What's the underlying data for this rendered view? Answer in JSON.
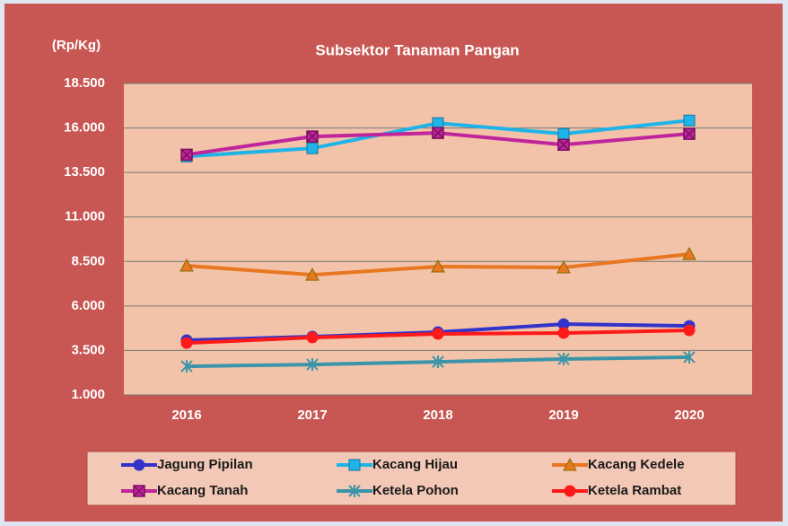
{
  "chart_data": {
    "type": "line",
    "title": "Subsektor Tanaman Pangan",
    "y_label": "(Rp/Kg)",
    "categories": [
      "2016",
      "2017",
      "2018",
      "2019",
      "2020"
    ],
    "ylim": [
      1000,
      18500
    ],
    "yticks": [
      {
        "value": 1000,
        "label": "1.000"
      },
      {
        "value": 3500,
        "label": "3.500"
      },
      {
        "value": 6000,
        "label": "6.000"
      },
      {
        "value": 8500,
        "label": "8.500"
      },
      {
        "value": 11000,
        "label": "11.000"
      },
      {
        "value": 13500,
        "label": "13.500"
      },
      {
        "value": 16000,
        "label": "16.000"
      },
      {
        "value": 18500,
        "label": "18.500"
      }
    ],
    "grid": true,
    "series": [
      {
        "name": "Jagung Pipilan",
        "color": "#3333cc",
        "marker": "circle",
        "values": [
          4075,
          4275,
          4530,
          4980,
          4880
        ]
      },
      {
        "name": "Kacang Hijau",
        "color": "#1fb4e8",
        "marker": "square",
        "values": [
          14400,
          14860,
          16270,
          15670,
          16420
        ]
      },
      {
        "name": "Kacang Kedele",
        "color": "#e87722",
        "marker": "triangle",
        "values": [
          8260,
          7750,
          8210,
          8160,
          8910
        ]
      },
      {
        "name": "Kacang Tanah",
        "color": "#c0259c",
        "marker": "xsquare",
        "values": [
          14500,
          15520,
          15720,
          15060,
          15670
        ]
      },
      {
        "name": "Ketela Pohon",
        "color": "#3c94a8",
        "marker": "star",
        "values": [
          2610,
          2710,
          2860,
          3020,
          3120
        ]
      },
      {
        "name": "Ketela Rambat",
        "color": "#ff1a1a",
        "marker": "circle",
        "values": [
          3920,
          4225,
          4430,
          4480,
          4630
        ]
      }
    ]
  }
}
